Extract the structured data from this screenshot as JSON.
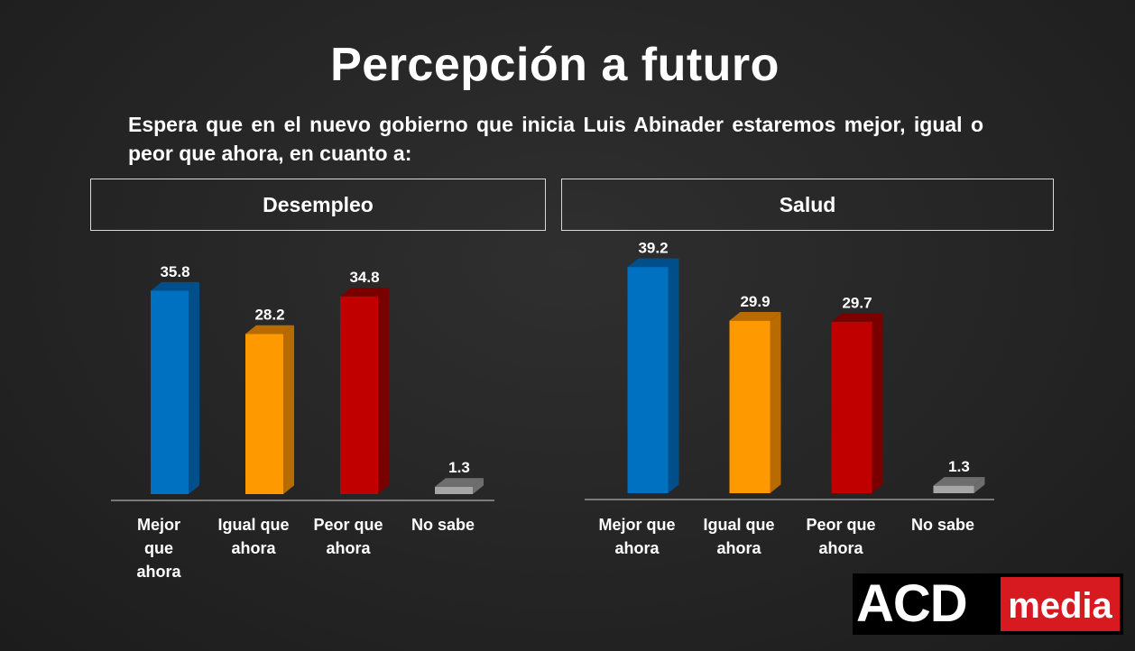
{
  "title": "Percepción a futuro",
  "question": "Espera que en el nuevo gobierno que inicia Luis Abinader estaremos mejor, igual o peor que ahora, en cuanto a:",
  "logo": {
    "acd": "ACD",
    "media": "media"
  },
  "colors": {
    "mejor": "#0070c0",
    "mejor_dark": "#004f8a",
    "igual": "#ff9900",
    "igual_dark": "#b86b00",
    "peor": "#c00000",
    "peor_dark": "#7a0000",
    "nosabe": "#a6a6a6",
    "nosabe_dark": "#6e6e6e"
  },
  "chart_data": [
    {
      "type": "bar",
      "title": "Desempleo",
      "categories": [
        [
          "Mejor",
          "que",
          "ahora"
        ],
        [
          "Igual que",
          "ahora"
        ],
        [
          "Peor que",
          "ahora"
        ],
        [
          "No sabe"
        ]
      ],
      "values": [
        35.8,
        28.2,
        34.8,
        1.3
      ],
      "value_labels": [
        "35.8",
        "28.2",
        "34.8",
        "1.3"
      ],
      "color_keys": [
        "mejor",
        "igual",
        "peor",
        "nosabe"
      ],
      "ylim": [
        0,
        40
      ]
    },
    {
      "type": "bar",
      "title": "Salud",
      "categories": [
        [
          "Mejor que",
          "ahora"
        ],
        [
          "Igual que",
          "ahora"
        ],
        [
          "Peor que",
          "ahora"
        ],
        [
          "No sabe"
        ]
      ],
      "values": [
        39.2,
        29.9,
        29.7,
        1.3
      ],
      "value_labels": [
        "39.2",
        "29.9",
        "29.7",
        "1.3"
      ],
      "color_keys": [
        "mejor",
        "igual",
        "peor",
        "nosabe"
      ],
      "ylim": [
        0,
        40
      ]
    }
  ]
}
